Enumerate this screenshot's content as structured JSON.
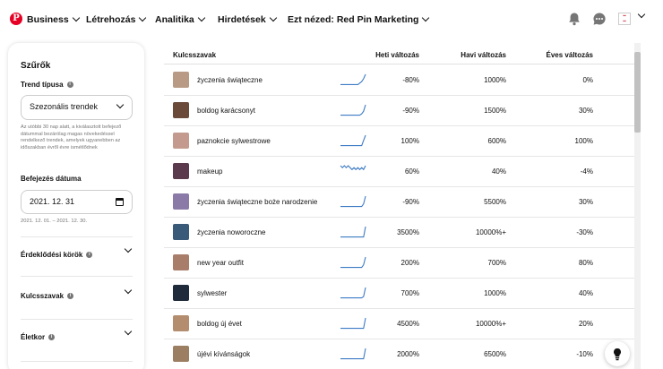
{
  "nav": {
    "logo_glyph": "P",
    "business": "Business",
    "create": "Létrehozás",
    "analytics": "Analitika",
    "ads": "Hirdetések",
    "view_as": "Ezt nézed: Red Pin Marketing",
    "brand_color": "#e60023",
    "icons": [
      "bell-icon",
      "messages-icon",
      "account-avatar",
      "chevron-down-icon"
    ]
  },
  "filters": {
    "title": "Szűrők",
    "trend_type_label": "Trend típusa",
    "trend_type_value": "Szezonális trendek",
    "trend_help": "Az utóbbi 30 nap alatt, a kiválasztott befejező dátummal bezárólag magas növekedéssel rendelkező trendek, amelyek ugyanebben az időszakban évről évre ismétlődnek",
    "end_date_label": "Befejezés dátuma",
    "end_date_value": "2021. 12. 31",
    "date_range": "2021. 12. 01. – 2021. 12. 30.",
    "interests_label": "Érdeklődési körök",
    "keywords_label": "Kulcsszavak",
    "age_label": "Életkor"
  },
  "table": {
    "headers": {
      "keywords": "Kulcsszavak",
      "weekly": "Heti változás",
      "monthly": "Havi változás",
      "yearly": "Éves változás"
    },
    "sparkline_color": "#3d7bc4",
    "rows": [
      {
        "keyword": "życzenia świąteczne",
        "weekly": "-80%",
        "monthly": "1000%",
        "yearly": "0%",
        "thumb": "#b89a85",
        "trend": [
          1,
          1,
          1,
          1,
          1,
          1,
          1,
          1,
          1,
          1,
          2,
          3,
          5,
          8
        ]
      },
      {
        "keyword": "boldog karácsonyt",
        "weekly": "-90%",
        "monthly": "1500%",
        "yearly": "30%",
        "thumb": "#6b4a3a",
        "trend": [
          1,
          1,
          1,
          1,
          1,
          1,
          1,
          1,
          1,
          1,
          1,
          2,
          4,
          9
        ]
      },
      {
        "keyword": "paznokcie sylwestrowe",
        "weekly": "100%",
        "monthly": "600%",
        "yearly": "100%",
        "thumb": "#c49a8e",
        "trend": [
          1,
          1,
          1,
          1,
          1,
          1,
          1,
          1,
          1,
          1,
          1,
          1,
          5,
          9
        ]
      },
      {
        "keyword": "makeup",
        "weekly": "60%",
        "monthly": "40%",
        "yearly": "-4%",
        "thumb": "#5c3a4e",
        "trend": [
          6,
          5,
          6,
          5,
          6,
          5,
          4,
          5,
          4,
          5,
          4,
          5,
          4,
          6
        ]
      },
      {
        "keyword": "życzenia świąteczne boże narodzenie",
        "weekly": "-90%",
        "monthly": "5500%",
        "yearly": "30%",
        "thumb": "#8b7aa8",
        "trend": [
          1,
          1,
          1,
          1,
          1,
          1,
          1,
          1,
          1,
          1,
          1,
          1,
          3,
          9
        ]
      },
      {
        "keyword": "życzenia noworoczne",
        "weekly": "3500%",
        "monthly": "10000%+",
        "yearly": "-30%",
        "thumb": "#3a5a7a",
        "trend": [
          1,
          1,
          1,
          1,
          1,
          1,
          1,
          1,
          1,
          1,
          1,
          1,
          1,
          9
        ]
      },
      {
        "keyword": "new year outfit",
        "weekly": "200%",
        "monthly": "700%",
        "yearly": "80%",
        "thumb": "#a87d6a",
        "trend": [
          1,
          1,
          1,
          1,
          1,
          1,
          1,
          1,
          1,
          1,
          1,
          1,
          3,
          9
        ]
      },
      {
        "keyword": "sylwester",
        "weekly": "700%",
        "monthly": "1000%",
        "yearly": "40%",
        "thumb": "#1f2a3a",
        "trend": [
          1,
          1,
          1,
          1,
          1,
          1,
          1,
          1,
          1,
          1,
          1,
          1,
          2,
          9
        ]
      },
      {
        "keyword": "boldog új évet",
        "weekly": "4500%",
        "monthly": "10000%+",
        "yearly": "20%",
        "thumb": "#b38d6e",
        "trend": [
          1,
          1,
          1,
          1,
          1,
          1,
          1,
          1,
          1,
          1,
          1,
          1,
          1,
          9
        ]
      },
      {
        "keyword": "újévi kívánságok",
        "weekly": "2000%",
        "monthly": "6500%",
        "yearly": "-10%",
        "thumb": "#9c7f62",
        "trend": [
          1,
          1,
          1,
          1,
          1,
          1,
          1,
          1,
          1,
          1,
          1,
          1,
          1,
          9
        ]
      }
    ]
  },
  "help_button_icon": "lightbulb-icon"
}
